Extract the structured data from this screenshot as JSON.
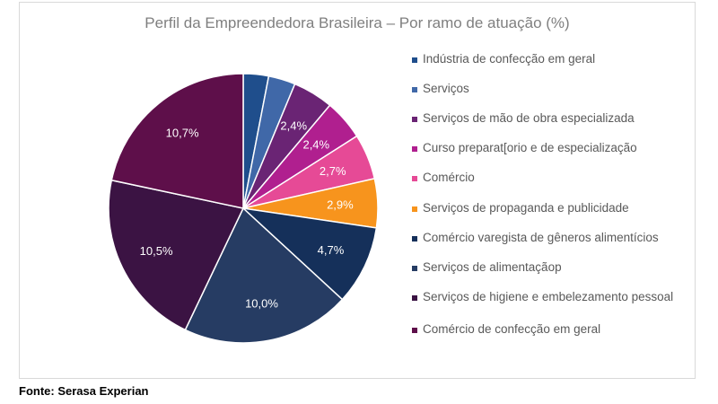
{
  "chart_data": {
    "type": "pie",
    "title": "Perfil da Empreendedora Brasileira – Por ramo de atuação (%)",
    "start_angle": "12 o'clock",
    "direction": "clockwise",
    "legend_position": "right",
    "slices": [
      {
        "name": "Indústria de confecção em geral",
        "value": 1.5,
        "label": "",
        "color": "#1f4e8c"
      },
      {
        "name": "Serviços",
        "value": 1.6,
        "label": "",
        "color": "#4068a8"
      },
      {
        "name": "Serviços de mão de obra especializada",
        "value": 2.4,
        "label": "2,4%",
        "color": "#6a2474"
      },
      {
        "name": "Curso preparat[orio e de especialização",
        "value": 2.4,
        "label": "2,4%",
        "color": "#b01f8f"
      },
      {
        "name": "Comércio",
        "value": 2.7,
        "label": "2,7%",
        "color": "#e64a96"
      },
      {
        "name": "Serviços de propaganda e publicidade",
        "value": 2.9,
        "label": "2,9%",
        "color": "#f7941d"
      },
      {
        "name": "Comércio varegista de gêneros alimentícios",
        "value": 4.7,
        "label": "4,7%",
        "color": "#15305a"
      },
      {
        "name": "Serviços de alimentaçãop",
        "value": 10.0,
        "label": "10,0%",
        "color": "#263c63"
      },
      {
        "name": "Serviços de higiene e embelezamento pessoal",
        "value": 10.5,
        "label": "10,5%",
        "color": "#3b1343"
      },
      {
        "name": "Comércio de confecção em geral",
        "value": 10.7,
        "label": "10,7%",
        "color": "#5e0f4a"
      }
    ]
  },
  "source_note": "Fonte: Serasa Experian"
}
